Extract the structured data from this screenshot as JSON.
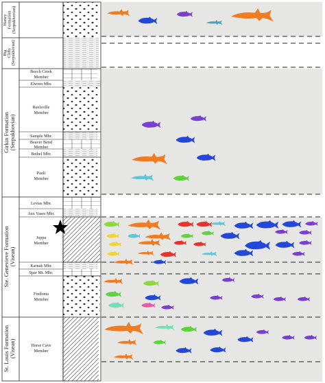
{
  "formations": [
    {
      "lines": [
        "Haney",
        "Formation",
        "(Serpukhovian)"
      ]
    },
    {
      "lines": [
        "Big",
        "Clifty",
        "(Serpukhovian)"
      ]
    },
    {
      "lines": [
        "Girkin Formation",
        "(Serpukhovian)"
      ]
    },
    {
      "lines": [
        "Ste. Genevieve Formation",
        "(Visean)"
      ]
    },
    {
      "lines": [
        "St. Louis Formation",
        "(Visean)"
      ]
    }
  ],
  "members": [
    {
      "lines": [
        "Beech Creek",
        "Member"
      ]
    },
    {
      "lines": [
        "Elwren Mbr."
      ]
    },
    {
      "lines": [
        "Reelsville",
        "Member"
      ]
    },
    {
      "lines": [
        "Sample Mbr."
      ]
    },
    {
      "lines": [
        "Beaver Bend",
        "Member"
      ]
    },
    {
      "lines": [
        "Bethel Mbr."
      ]
    },
    {
      "lines": [
        "Paoli",
        "Member"
      ]
    },
    {
      "lines": [
        "Levias Mbr."
      ]
    },
    {
      "lines": [
        "Aux Vases Mbr."
      ]
    },
    {
      "lines": [
        "Joppa",
        "Member"
      ]
    },
    {
      "lines": [
        "Karnak Mbr."
      ]
    },
    {
      "lines": [
        "Spar Mt. Mbr."
      ]
    },
    {
      "lines": [
        "Fredonia",
        "Member"
      ]
    },
    {
      "lines": [
        "Horse Cave",
        "Member"
      ]
    }
  ]
}
